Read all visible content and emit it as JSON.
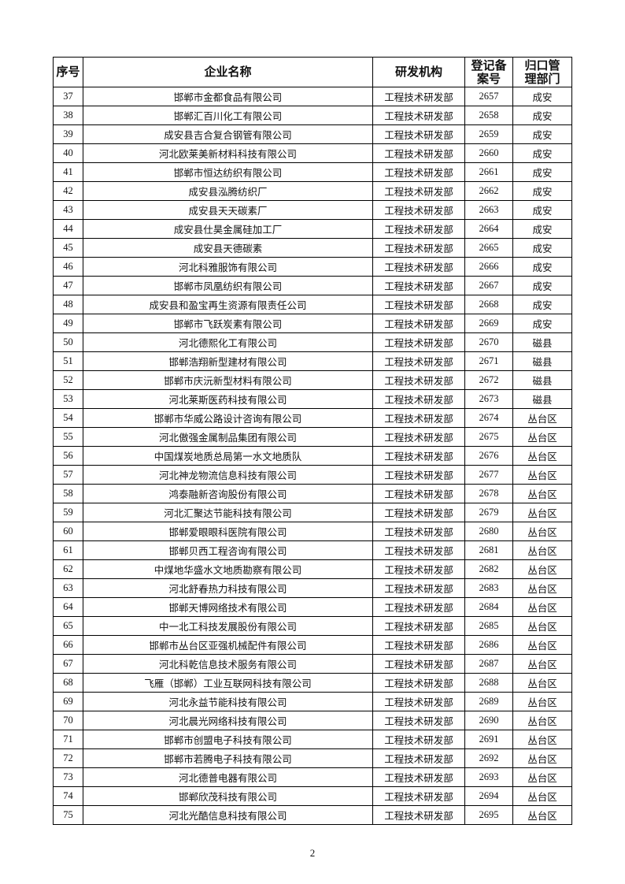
{
  "table": {
    "headers": [
      "序号",
      "企业名称",
      "研发机构",
      "登记备案号",
      "归口管理部门"
    ],
    "rows": [
      [
        "37",
        "邯郸市金都食品有限公司",
        "工程技术研发部",
        "2657",
        "成安"
      ],
      [
        "38",
        "邯郸汇百川化工有限公司",
        "工程技术研发部",
        "2658",
        "成安"
      ],
      [
        "39",
        "成安县吉合复合钢管有限公司",
        "工程技术研发部",
        "2659",
        "成安"
      ],
      [
        "40",
        "河北欧莱美新材料科技有限公司",
        "工程技术研发部",
        "2660",
        "成安"
      ],
      [
        "41",
        "邯郸市恒达纺织有限公司",
        "工程技术研发部",
        "2661",
        "成安"
      ],
      [
        "42",
        "成安县泓腾纺织厂",
        "工程技术研发部",
        "2662",
        "成安"
      ],
      [
        "43",
        "成安县天天碳素厂",
        "工程技术研发部",
        "2663",
        "成安"
      ],
      [
        "44",
        "成安县仕昊金属硅加工厂",
        "工程技术研发部",
        "2664",
        "成安"
      ],
      [
        "45",
        "成安县天德碳素",
        "工程技术研发部",
        "2665",
        "成安"
      ],
      [
        "46",
        "河北科雅服饰有限公司",
        "工程技术研发部",
        "2666",
        "成安"
      ],
      [
        "47",
        "邯郸市凤凰纺织有限公司",
        "工程技术研发部",
        "2667",
        "成安"
      ],
      [
        "48",
        "成安县和盈宝再生资源有限责任公司",
        "工程技术研发部",
        "2668",
        "成安"
      ],
      [
        "49",
        "邯郸市飞跃炭素有限公司",
        "工程技术研发部",
        "2669",
        "成安"
      ],
      [
        "50",
        "河北德熙化工有限公司",
        "工程技术研发部",
        "2670",
        "磁县"
      ],
      [
        "51",
        "邯郸浩翔新型建材有限公司",
        "工程技术研发部",
        "2671",
        "磁县"
      ],
      [
        "52",
        "邯郸市庆沅新型材料有限公司",
        "工程技术研发部",
        "2672",
        "磁县"
      ],
      [
        "53",
        "河北莱斯医药科技有限公司",
        "工程技术研发部",
        "2673",
        "磁县"
      ],
      [
        "54",
        "邯郸市华威公路设计咨询有限公司",
        "工程技术研发部",
        "2674",
        "丛台区"
      ],
      [
        "55",
        "河北傲强金属制品集团有限公司",
        "工程技术研发部",
        "2675",
        "丛台区"
      ],
      [
        "56",
        "中国煤炭地质总局第一水文地质队",
        "工程技术研发部",
        "2676",
        "丛台区"
      ],
      [
        "57",
        "河北神龙物流信息科技有限公司",
        "工程技术研发部",
        "2677",
        "丛台区"
      ],
      [
        "58",
        "鸿泰融新咨询股份有限公司",
        "工程技术研发部",
        "2678",
        "丛台区"
      ],
      [
        "59",
        "河北汇聚达节能科技有限公司",
        "工程技术研发部",
        "2679",
        "丛台区"
      ],
      [
        "60",
        "邯郸爱眼眼科医院有限公司",
        "工程技术研发部",
        "2680",
        "丛台区"
      ],
      [
        "61",
        "邯郸贝西工程咨询有限公司",
        "工程技术研发部",
        "2681",
        "丛台区"
      ],
      [
        "62",
        "中煤地华盛水文地质勘察有限公司",
        "工程技术研发部",
        "2682",
        "丛台区"
      ],
      [
        "63",
        "河北舒春热力科技有限公司",
        "工程技术研发部",
        "2683",
        "丛台区"
      ],
      [
        "64",
        "邯郸天博网络技术有限公司",
        "工程技术研发部",
        "2684",
        "丛台区"
      ],
      [
        "65",
        "中一北工科技发展股份有限公司",
        "工程技术研发部",
        "2685",
        "丛台区"
      ],
      [
        "66",
        "邯郸市丛台区亚强机械配件有限公司",
        "工程技术研发部",
        "2686",
        "丛台区"
      ],
      [
        "67",
        "河北科乾信息技术服务有限公司",
        "工程技术研发部",
        "2687",
        "丛台区"
      ],
      [
        "68",
        "飞雁（邯郸）工业互联网科技有限公司",
        "工程技术研发部",
        "2688",
        "丛台区"
      ],
      [
        "69",
        "河北永益节能科技有限公司",
        "工程技术研发部",
        "2689",
        "丛台区"
      ],
      [
        "70",
        "河北晨光网络科技有限公司",
        "工程技术研发部",
        "2690",
        "丛台区"
      ],
      [
        "71",
        "邯郸市创盟电子科技有限公司",
        "工程技术研发部",
        "2691",
        "丛台区"
      ],
      [
        "72",
        "邯郸市若腾电子科技有限公司",
        "工程技术研发部",
        "2692",
        "丛台区"
      ],
      [
        "73",
        "河北德普电器有限公司",
        "工程技术研发部",
        "2693",
        "丛台区"
      ],
      [
        "74",
        "邯郸欣茂科技有限公司",
        "工程技术研发部",
        "2694",
        "丛台区"
      ],
      [
        "75",
        "河北光酷信息科技有限公司",
        "工程技术研发部",
        "2695",
        "丛台区"
      ]
    ]
  },
  "page_number": "2"
}
